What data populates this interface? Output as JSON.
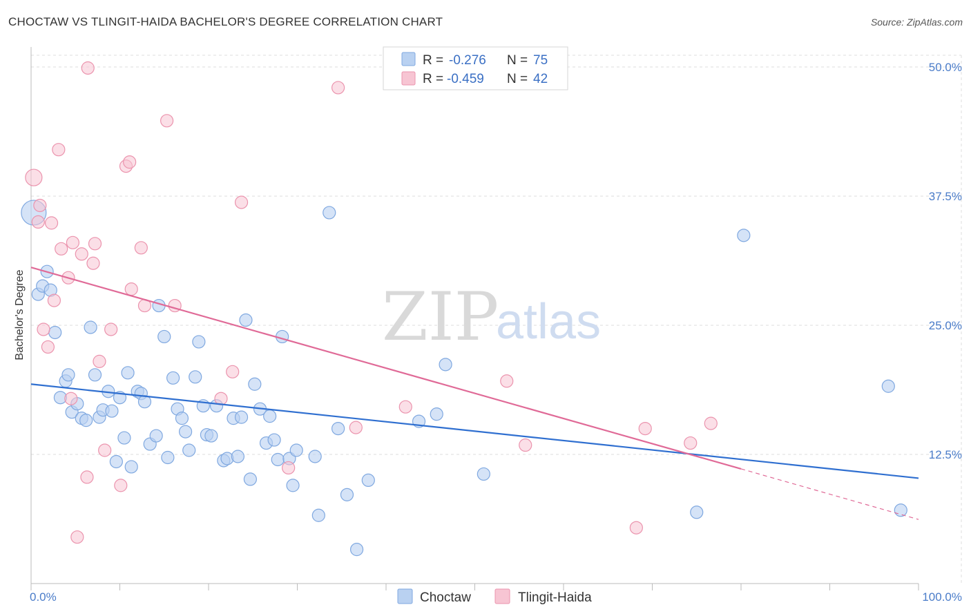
{
  "title": "CHOCTAW VS TLINGIT-HAIDA BACHELOR'S DEGREE CORRELATION CHART",
  "source": "Source: ZipAtlas.com",
  "watermark": {
    "zip": "ZIP",
    "atlas": "atlas"
  },
  "colors": {
    "choctaw_fill": "#b9d1f1",
    "choctaw_stroke": "#7fa8e0",
    "choctaw_line": "#2f6fd0",
    "tlingit_fill": "#f7c5d3",
    "tlingit_stroke": "#eb93ad",
    "tlingit_line": "#e06a97",
    "grid": "#dddddd",
    "axis_text": "#4a7cc9"
  },
  "legend": {
    "r_label": "R =",
    "n_label": "N =",
    "choctaw_r": "-0.276",
    "choctaw_n": "75",
    "tlingit_r": "-0.459",
    "tlingit_n": "42"
  },
  "chart_data": {
    "type": "scatter",
    "xlabel": "",
    "ylabel": "Bachelor's Degree",
    "xlim": [
      0,
      100
    ],
    "ylim": [
      0,
      50
    ],
    "x_tick_labels": [
      "0.0%",
      "100.0%"
    ],
    "y_ticks": [
      12.5,
      25.0,
      37.5,
      50.0
    ],
    "y_tick_labels": [
      "12.5%",
      "25.0%",
      "37.5%",
      "50.0%"
    ],
    "grid": true,
    "legend_position": "top-center",
    "series": [
      {
        "name": "Choctaw",
        "r": -0.276,
        "n": 75,
        "trend": {
          "x0": 0,
          "y0": 19.3,
          "x1": 100,
          "y1": 10.2
        },
        "points": [
          [
            0.3,
            35.9
          ],
          [
            0.8,
            28.0
          ],
          [
            1.3,
            28.8
          ],
          [
            1.8,
            30.2
          ],
          [
            2.2,
            28.4
          ],
          [
            2.7,
            24.3
          ],
          [
            3.3,
            18.0
          ],
          [
            3.9,
            19.6
          ],
          [
            4.2,
            20.2
          ],
          [
            4.6,
            16.6
          ],
          [
            5.2,
            17.4
          ],
          [
            5.7,
            16.0
          ],
          [
            6.2,
            15.8
          ],
          [
            6.7,
            24.8
          ],
          [
            7.2,
            20.2
          ],
          [
            7.7,
            16.1
          ],
          [
            8.1,
            16.8
          ],
          [
            8.7,
            18.6
          ],
          [
            9.1,
            16.7
          ],
          [
            9.6,
            11.8
          ],
          [
            10.0,
            18.0
          ],
          [
            10.5,
            14.1
          ],
          [
            10.9,
            20.4
          ],
          [
            11.3,
            11.3
          ],
          [
            12.0,
            18.6
          ],
          [
            12.4,
            18.4
          ],
          [
            12.8,
            17.6
          ],
          [
            13.4,
            13.5
          ],
          [
            14.1,
            14.3
          ],
          [
            14.4,
            26.9
          ],
          [
            15.0,
            23.9
          ],
          [
            15.4,
            12.2
          ],
          [
            16.0,
            19.9
          ],
          [
            16.5,
            16.9
          ],
          [
            17.0,
            16.0
          ],
          [
            17.4,
            14.7
          ],
          [
            17.8,
            12.9
          ],
          [
            18.5,
            20.0
          ],
          [
            18.9,
            23.4
          ],
          [
            19.4,
            17.2
          ],
          [
            19.8,
            14.4
          ],
          [
            20.3,
            14.3
          ],
          [
            20.9,
            17.2
          ],
          [
            21.7,
            11.9
          ],
          [
            22.1,
            12.1
          ],
          [
            22.8,
            16.0
          ],
          [
            23.3,
            12.3
          ],
          [
            23.7,
            16.1
          ],
          [
            24.2,
            25.5
          ],
          [
            24.7,
            10.1
          ],
          [
            25.2,
            19.3
          ],
          [
            25.8,
            16.9
          ],
          [
            26.5,
            13.6
          ],
          [
            26.9,
            16.2
          ],
          [
            27.4,
            13.9
          ],
          [
            27.8,
            12.0
          ],
          [
            28.3,
            23.9
          ],
          [
            29.1,
            12.1
          ],
          [
            29.5,
            9.5
          ],
          [
            29.9,
            12.9
          ],
          [
            32.0,
            12.3
          ],
          [
            32.4,
            6.6
          ],
          [
            33.6,
            35.9
          ],
          [
            34.6,
            15.0
          ],
          [
            35.6,
            8.6
          ],
          [
            36.7,
            3.3
          ],
          [
            38.0,
            10.0
          ],
          [
            43.7,
            15.7
          ],
          [
            45.7,
            16.4
          ],
          [
            46.7,
            21.2
          ],
          [
            51.0,
            10.6
          ],
          [
            75.0,
            6.9
          ],
          [
            80.3,
            33.7
          ],
          [
            96.6,
            19.1
          ],
          [
            98.0,
            7.1
          ]
        ]
      },
      {
        "name": "Tlingit-Haida",
        "r": -0.459,
        "n": 42,
        "trend": {
          "x0": 0,
          "y0": 30.6,
          "x1": 80,
          "y1": 11.1,
          "dash_x1": 100,
          "dash_y1": 6.2
        },
        "points": [
          [
            0.3,
            39.3
          ],
          [
            0.8,
            35.0
          ],
          [
            1.0,
            36.6
          ],
          [
            1.4,
            24.6
          ],
          [
            1.9,
            22.9
          ],
          [
            2.3,
            34.9
          ],
          [
            2.6,
            27.4
          ],
          [
            3.1,
            42.0
          ],
          [
            3.4,
            32.4
          ],
          [
            4.2,
            29.6
          ],
          [
            4.5,
            17.9
          ],
          [
            4.7,
            33.0
          ],
          [
            5.2,
            4.5
          ],
          [
            5.7,
            31.9
          ],
          [
            6.3,
            10.3
          ],
          [
            6.4,
            49.9
          ],
          [
            7.0,
            31.0
          ],
          [
            7.2,
            32.9
          ],
          [
            7.7,
            21.5
          ],
          [
            8.3,
            12.9
          ],
          [
            9.0,
            24.6
          ],
          [
            10.1,
            9.5
          ],
          [
            10.7,
            40.4
          ],
          [
            11.1,
            40.8
          ],
          [
            11.3,
            28.5
          ],
          [
            12.4,
            32.5
          ],
          [
            12.8,
            26.9
          ],
          [
            15.3,
            44.8
          ],
          [
            16.2,
            26.9
          ],
          [
            21.4,
            17.9
          ],
          [
            22.7,
            20.5
          ],
          [
            23.7,
            36.9
          ],
          [
            29.0,
            11.2
          ],
          [
            34.6,
            48.0
          ],
          [
            36.6,
            15.1
          ],
          [
            42.2,
            17.1
          ],
          [
            53.6,
            19.6
          ],
          [
            55.7,
            13.4
          ],
          [
            68.2,
            5.4
          ],
          [
            69.2,
            15.0
          ],
          [
            74.3,
            13.6
          ],
          [
            76.6,
            15.5
          ]
        ]
      }
    ]
  },
  "bottom_legend": {
    "choctaw": "Choctaw",
    "tlingit": "Tlingit-Haida"
  }
}
